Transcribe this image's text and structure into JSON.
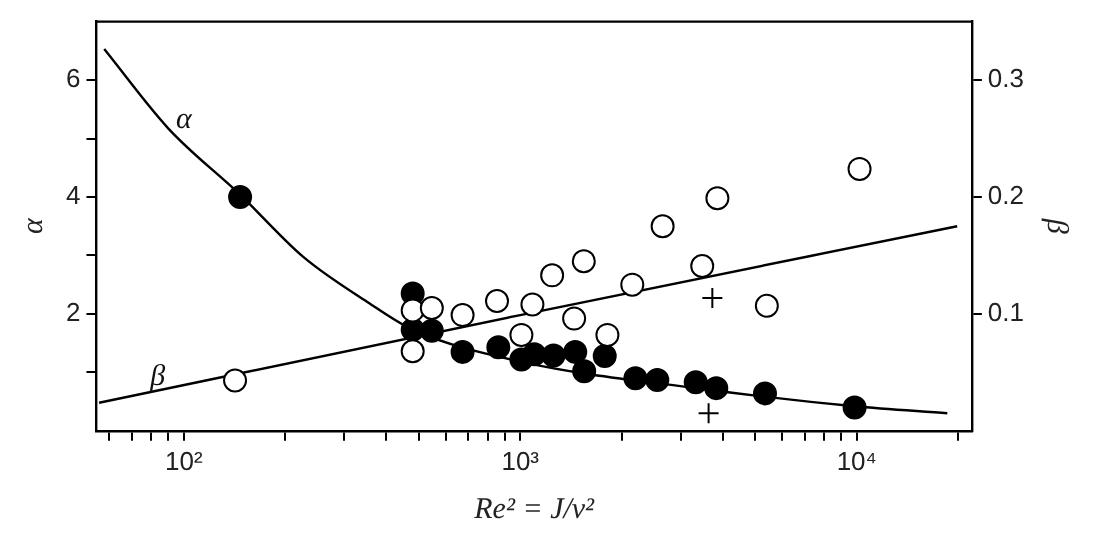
{
  "chart_data": {
    "type": "scatter",
    "xlabel": "Re² = J/ν²",
    "ylabel": "α",
    "y2label": "β",
    "log": "x",
    "grid": false,
    "legend": false,
    "xlim": [
      55,
      22000
    ],
    "xticks": [
      {
        "value": 60,
        "label": null
      },
      {
        "value": 70,
        "label": null
      },
      {
        "value": 80,
        "label": null
      },
      {
        "value": 90,
        "label": null
      },
      {
        "value": 100,
        "label": "10²"
      },
      {
        "value": 200,
        "label": null
      },
      {
        "value": 300,
        "label": null
      },
      {
        "value": 400,
        "label": null
      },
      {
        "value": 500,
        "label": null
      },
      {
        "value": 600,
        "label": null
      },
      {
        "value": 700,
        "label": null
      },
      {
        "value": 800,
        "label": null
      },
      {
        "value": 900,
        "label": null
      },
      {
        "value": 1000,
        "label": "10³"
      },
      {
        "value": 2000,
        "label": null
      },
      {
        "value": 3000,
        "label": null
      },
      {
        "value": 4000,
        "label": null
      },
      {
        "value": 5000,
        "label": null
      },
      {
        "value": 6000,
        "label": null
      },
      {
        "value": 7000,
        "label": null
      },
      {
        "value": 8000,
        "label": null
      },
      {
        "value": 9000,
        "label": null
      },
      {
        "value": 10000,
        "label": "10⁴"
      },
      {
        "value": 20000,
        "label": null
      }
    ],
    "ylim": [
      0,
      7
    ],
    "yticks": [
      {
        "value": 1,
        "label": null
      },
      2,
      {
        "value": 3,
        "label": null
      },
      4,
      {
        "value": 5,
        "label": null
      },
      6
    ],
    "y2lim": [
      0,
      0.35
    ],
    "y2ticks": [
      0.1,
      0.2,
      0.3
    ],
    "annotations": [
      "α",
      "β"
    ],
    "series": [
      {
        "type": "line",
        "marker": "none",
        "color": "#000000",
        "x": [
          58,
          90,
          147,
          227,
          352,
          479,
          1008,
          3442,
          9860,
          18600
        ],
        "values": [
          6.53,
          5.17,
          4.04,
          2.97,
          2.2,
          1.73,
          1.18,
          0.72,
          0.42,
          0.3
        ]
      },
      {
        "type": "line",
        "marker": "none",
        "color": "#000000",
        "axis": "y2",
        "x": [
          56,
          1000,
          19900
        ],
        "values": [
          0.024,
          0.099,
          0.175
        ]
      },
      {
        "marker": "circle",
        "color": "#000000",
        "x": [
          147,
          479,
          479,
          546,
          674,
          861,
          1008,
          1101,
          1256,
          1457,
          1549,
          1783,
          2200,
          2555,
          3324,
          3826,
          5340,
          9860
        ],
        "values": [
          4.0,
          2.35,
          1.73,
          1.71,
          1.35,
          1.43,
          1.22,
          1.31,
          1.29,
          1.35,
          1.02,
          1.28,
          0.9,
          0.87,
          0.83,
          0.73,
          0.64,
          0.4
        ]
      },
      {
        "marker": "circle",
        "color": "#ffffff",
        "axis": "y2",
        "x": [
          142,
          479,
          479,
          546,
          674,
          853,
          1008,
          1087,
          1244,
          1446,
          1545,
          1816,
          2153,
          2650,
          3475,
          3855,
          5408,
          10200
        ],
        "values": [
          0.043,
          0.103,
          0.068,
          0.105,
          0.099,
          0.111,
          0.082,
          0.108,
          0.133,
          0.096,
          0.145,
          0.082,
          0.125,
          0.175,
          0.141,
          0.199,
          0.107,
          0.224
        ]
      },
      {
        "marker": "cross",
        "color": "#000000",
        "x": [
          3724,
          3630
        ],
        "values": [
          2.27,
          0.3
        ]
      }
    ]
  }
}
